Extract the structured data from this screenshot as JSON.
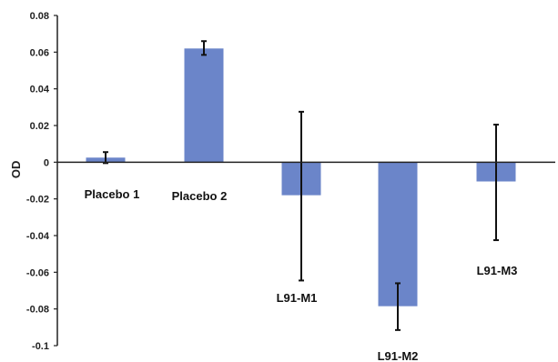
{
  "chart_data": {
    "type": "bar",
    "title": "",
    "xlabel": "",
    "ylabel": "OD",
    "ylim": [
      -0.1,
      0.08
    ],
    "yticks": [
      0.08,
      0.06,
      0.04,
      0.02,
      0,
      -0.02,
      -0.04,
      -0.06,
      -0.08,
      -0.1
    ],
    "ytick_labels": [
      "0.08",
      "0.06",
      "0.04",
      "0.02",
      "0",
      "-0.02",
      "-0.04",
      "-0.06",
      "-0.08",
      "-0.1"
    ],
    "grid": false,
    "legend": "none",
    "bar_color": "#6b85c9",
    "error_bar_color": "#111111",
    "categories": [
      "Placebo 1",
      "Placebo 2",
      "L91-M1",
      "L91-M2",
      "L91-M3"
    ],
    "values": [
      0.0025,
      0.062,
      -0.018,
      -0.0785,
      -0.0105
    ],
    "error_bars": [
      {
        "low": -0.0005,
        "high": 0.0055
      },
      {
        "low": 0.0585,
        "high": 0.066
      },
      {
        "low": -0.0645,
        "high": 0.0275
      },
      {
        "low": -0.0915,
        "high": -0.066
      },
      {
        "low": -0.0425,
        "high": 0.0205
      }
    ]
  }
}
